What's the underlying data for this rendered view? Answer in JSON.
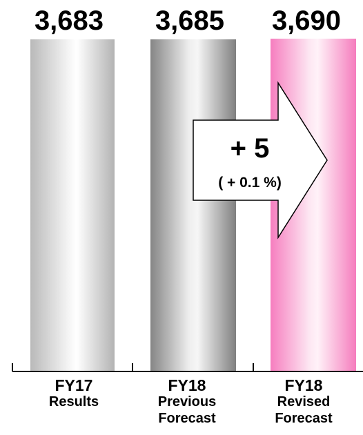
{
  "chart_data": {
    "type": "bar",
    "categories": [
      {
        "line1": "FY17",
        "line2": "Results"
      },
      {
        "line1": "FY18",
        "line2": "Previous\nForecast"
      },
      {
        "line1": "FY18",
        "line2": "Revised\nForecast"
      }
    ],
    "values": [
      3683,
      3685,
      3690
    ],
    "value_labels": [
      "3,683",
      "3,685",
      "3,690"
    ],
    "annotation": {
      "delta": "+ 5",
      "percent": "( + 0.1 %)"
    },
    "bar_colors": [
      "#b5b5b5",
      "#8a8a8a",
      "#f58ac4"
    ],
    "grid": false
  }
}
